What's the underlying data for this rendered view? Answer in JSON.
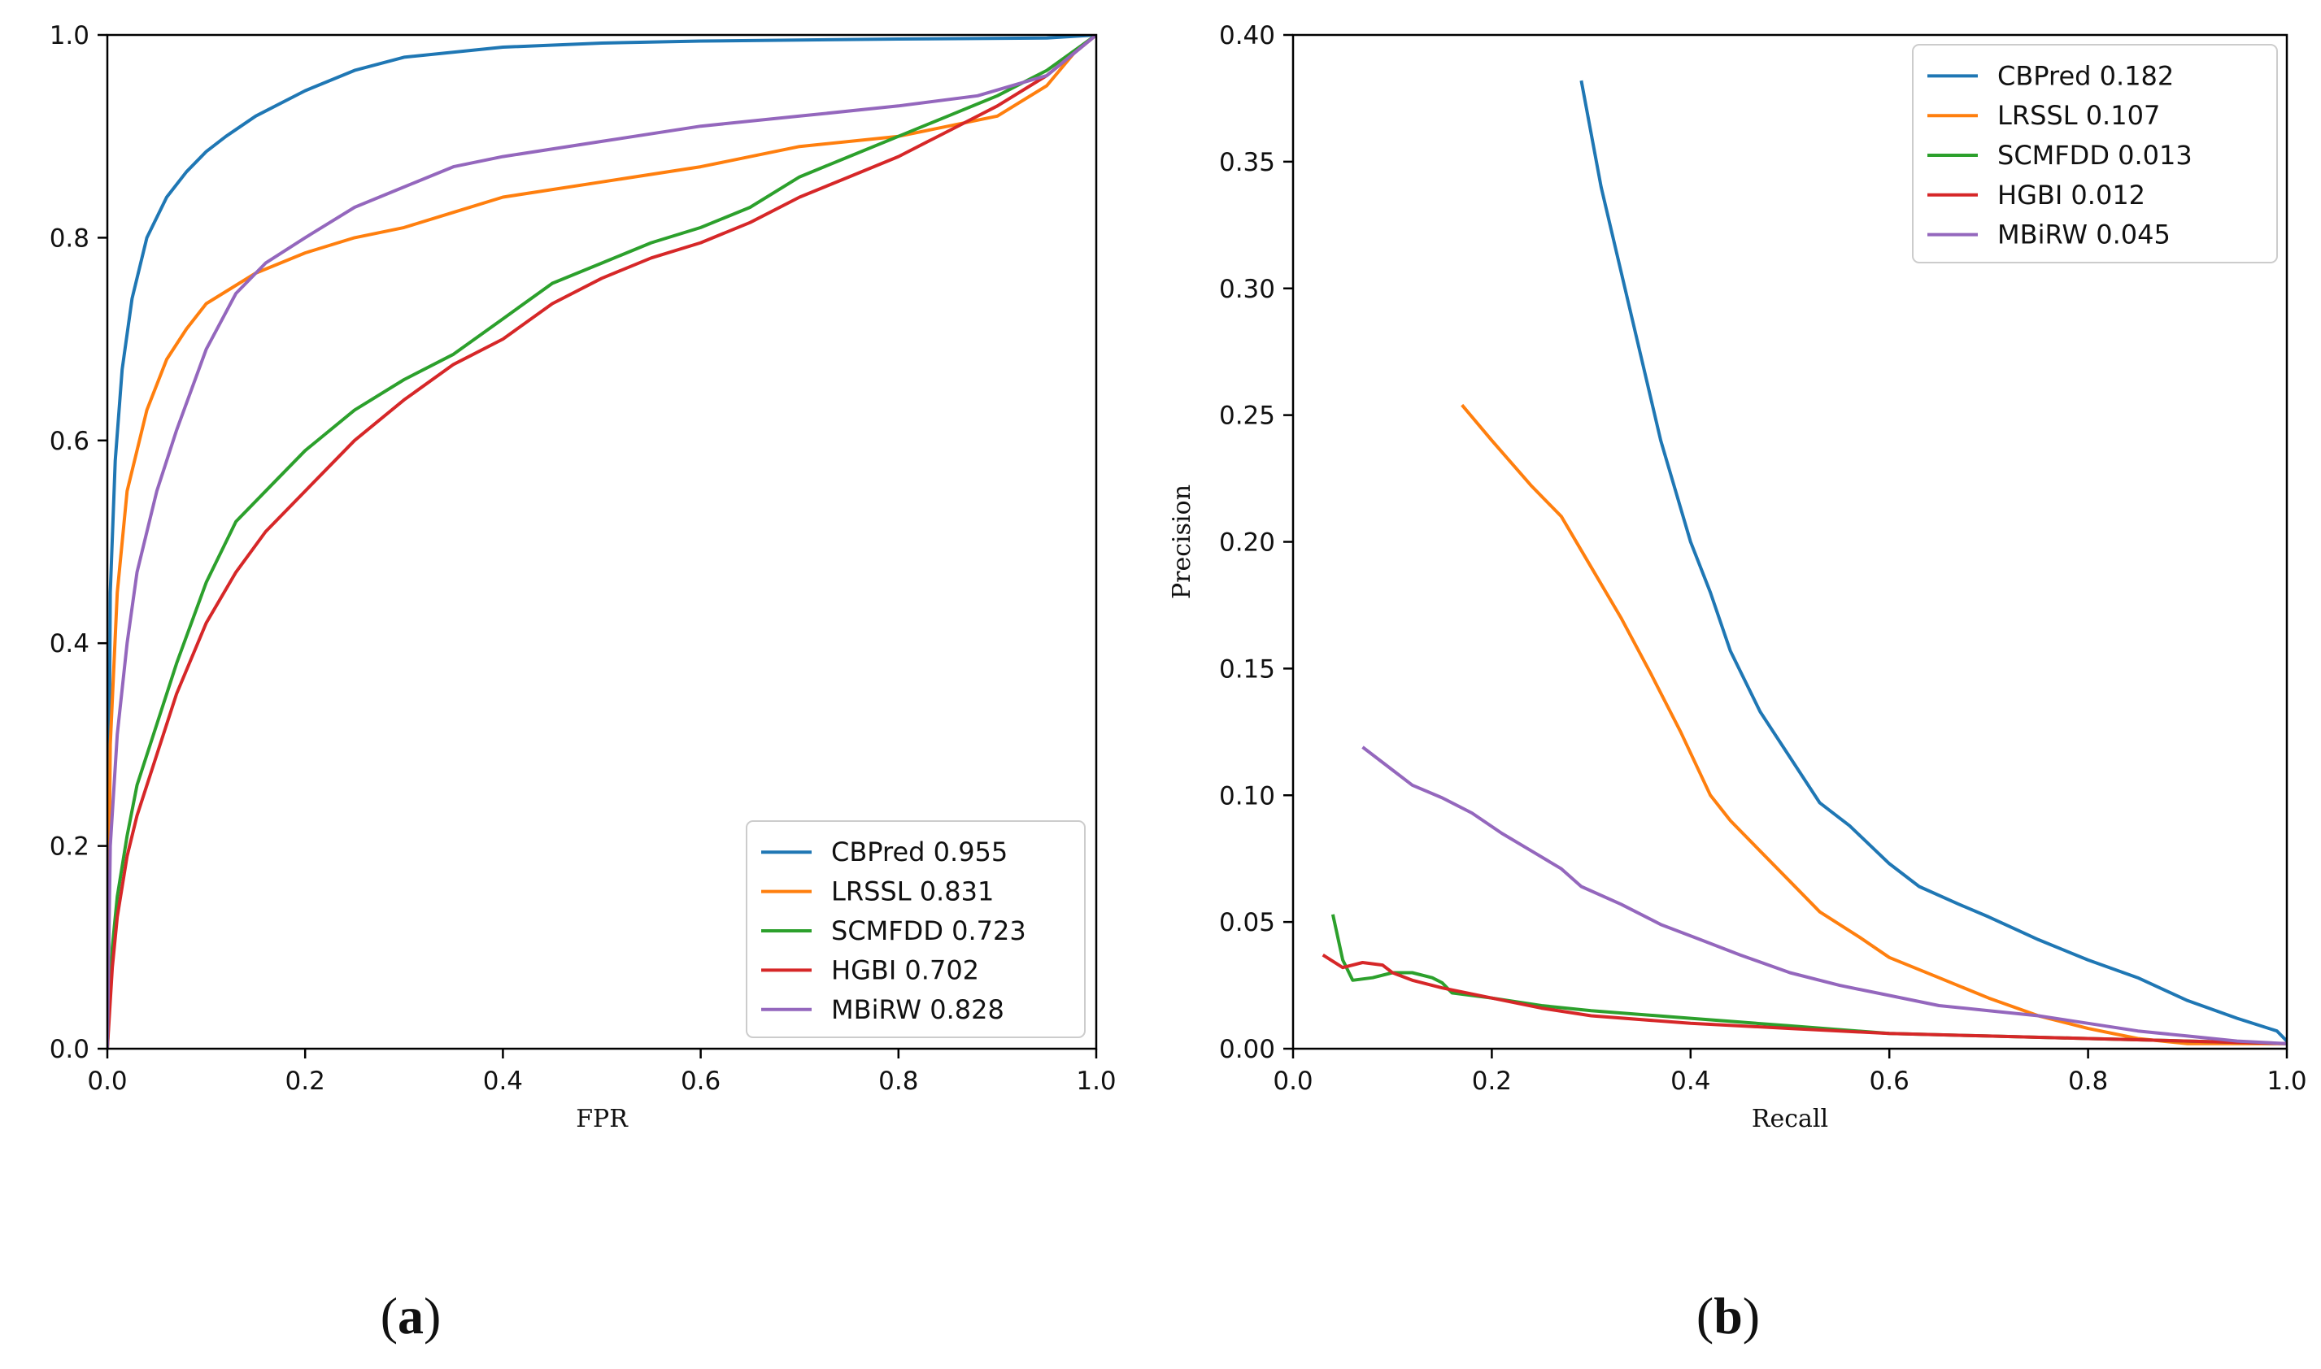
{
  "chart_data": [
    {
      "type": "line",
      "panel_label": [
        "(",
        "a",
        ")"
      ],
      "title": "",
      "xlabel": "FPR",
      "ylabel": "",
      "xlim": [
        0,
        1
      ],
      "ylim": [
        0,
        1
      ],
      "xticks": [
        "0.0",
        "0.2",
        "0.4",
        "0.6",
        "0.8",
        "1.0"
      ],
      "yticks": [
        "0.0",
        "0.2",
        "0.4",
        "0.6",
        "0.8",
        "1.0"
      ],
      "legend_position": "bottom-right",
      "series": [
        {
          "name": "CBPred",
          "legend": "CBPred 0.955",
          "color": "#1f77b4",
          "x": [
            0,
            0.003,
            0.008,
            0.015,
            0.025,
            0.04,
            0.06,
            0.08,
            0.1,
            0.12,
            0.15,
            0.2,
            0.25,
            0.3,
            0.4,
            0.5,
            0.6,
            0.8,
            0.95,
            1.0
          ],
          "y": [
            0,
            0.45,
            0.58,
            0.67,
            0.74,
            0.8,
            0.84,
            0.865,
            0.885,
            0.9,
            0.92,
            0.945,
            0.965,
            0.978,
            0.988,
            0.992,
            0.994,
            0.996,
            0.997,
            1.0
          ]
        },
        {
          "name": "LRSSL",
          "legend": "LRSSL 0.831",
          "color": "#ff7f0e",
          "x": [
            0,
            0.003,
            0.01,
            0.02,
            0.04,
            0.06,
            0.08,
            0.1,
            0.15,
            0.2,
            0.25,
            0.3,
            0.35,
            0.4,
            0.5,
            0.6,
            0.7,
            0.8,
            0.9,
            0.95,
            0.98,
            1.0
          ],
          "y": [
            0,
            0.3,
            0.45,
            0.55,
            0.63,
            0.68,
            0.71,
            0.735,
            0.765,
            0.785,
            0.8,
            0.81,
            0.825,
            0.84,
            0.855,
            0.87,
            0.89,
            0.9,
            0.92,
            0.95,
            0.985,
            1.0
          ]
        },
        {
          "name": "SCMFDD",
          "legend": "SCMFDD 0.723",
          "color": "#2ca02c",
          "x": [
            0,
            0.005,
            0.01,
            0.02,
            0.03,
            0.05,
            0.07,
            0.1,
            0.13,
            0.17,
            0.2,
            0.25,
            0.3,
            0.35,
            0.4,
            0.45,
            0.5,
            0.55,
            0.6,
            0.65,
            0.7,
            0.75,
            0.8,
            0.85,
            0.9,
            0.95,
            1.0
          ],
          "y": [
            0,
            0.1,
            0.15,
            0.21,
            0.26,
            0.32,
            0.38,
            0.46,
            0.52,
            0.56,
            0.59,
            0.63,
            0.66,
            0.685,
            0.72,
            0.755,
            0.775,
            0.795,
            0.81,
            0.83,
            0.86,
            0.88,
            0.9,
            0.92,
            0.94,
            0.965,
            1.0
          ]
        },
        {
          "name": "HGBI",
          "legend": "HGBI 0.702",
          "color": "#d62728",
          "x": [
            0,
            0.005,
            0.01,
            0.02,
            0.03,
            0.05,
            0.07,
            0.1,
            0.13,
            0.16,
            0.2,
            0.25,
            0.3,
            0.35,
            0.4,
            0.45,
            0.5,
            0.55,
            0.6,
            0.65,
            0.7,
            0.75,
            0.8,
            0.85,
            0.9,
            0.95,
            1.0
          ],
          "y": [
            0,
            0.08,
            0.13,
            0.19,
            0.23,
            0.29,
            0.35,
            0.42,
            0.47,
            0.51,
            0.55,
            0.6,
            0.64,
            0.675,
            0.7,
            0.735,
            0.76,
            0.78,
            0.795,
            0.815,
            0.84,
            0.86,
            0.88,
            0.905,
            0.93,
            0.96,
            1.0
          ]
        },
        {
          "name": "MBiRW",
          "legend": "MBiRW 0.828",
          "color": "#9467bd",
          "x": [
            0,
            0.003,
            0.01,
            0.02,
            0.03,
            0.05,
            0.07,
            0.1,
            0.13,
            0.16,
            0.2,
            0.25,
            0.3,
            0.35,
            0.4,
            0.5,
            0.6,
            0.7,
            0.8,
            0.88,
            0.95,
            1.0
          ],
          "y": [
            0,
            0.2,
            0.31,
            0.4,
            0.47,
            0.55,
            0.61,
            0.69,
            0.745,
            0.775,
            0.8,
            0.83,
            0.85,
            0.87,
            0.88,
            0.895,
            0.91,
            0.92,
            0.93,
            0.94,
            0.96,
            1.0
          ]
        }
      ]
    },
    {
      "type": "line",
      "panel_label": [
        "(",
        "b",
        ")"
      ],
      "title": "",
      "xlabel": "Recall",
      "ylabel": "Precision",
      "xlim": [
        0,
        1
      ],
      "ylim": [
        0,
        0.4
      ],
      "xticks": [
        "0.0",
        "0.2",
        "0.4",
        "0.6",
        "0.8",
        "1.0"
      ],
      "yticks": [
        "0.00",
        "0.05",
        "0.10",
        "0.15",
        "0.20",
        "0.25",
        "0.30",
        "0.35",
        "0.40"
      ],
      "legend_position": "top-right",
      "series": [
        {
          "name": "CBPred",
          "legend": "CBPred  0.182",
          "color": "#1f77b4",
          "x": [
            0.29,
            0.31,
            0.34,
            0.37,
            0.4,
            0.42,
            0.44,
            0.47,
            0.5,
            0.53,
            0.56,
            0.6,
            0.63,
            0.67,
            0.7,
            0.75,
            0.8,
            0.85,
            0.9,
            0.95,
            0.99,
            1.0
          ],
          "y": [
            0.382,
            0.34,
            0.29,
            0.24,
            0.2,
            0.18,
            0.157,
            0.133,
            0.115,
            0.097,
            0.088,
            0.073,
            0.064,
            0.057,
            0.052,
            0.043,
            0.035,
            0.028,
            0.019,
            0.012,
            0.007,
            0.003
          ]
        },
        {
          "name": "LRSSL",
          "legend": "LRSSL  0.107",
          "color": "#ff7f0e",
          "x": [
            0.17,
            0.2,
            0.24,
            0.27,
            0.3,
            0.33,
            0.36,
            0.39,
            0.42,
            0.44,
            0.47,
            0.5,
            0.53,
            0.57,
            0.6,
            0.65,
            0.7,
            0.75,
            0.8,
            0.85,
            0.9,
            1.0
          ],
          "y": [
            0.254,
            0.24,
            0.222,
            0.21,
            0.19,
            0.17,
            0.148,
            0.125,
            0.1,
            0.09,
            0.078,
            0.066,
            0.054,
            0.044,
            0.036,
            0.028,
            0.02,
            0.013,
            0.008,
            0.004,
            0.002,
            0.002
          ]
        },
        {
          "name": "SCMFDD",
          "legend": "SCMFDD  0.013",
          "color": "#2ca02c",
          "x": [
            0.04,
            0.05,
            0.06,
            0.08,
            0.1,
            0.12,
            0.14,
            0.15,
            0.16,
            0.2,
            0.25,
            0.3,
            0.4,
            0.5,
            0.6,
            0.7,
            0.8,
            0.9,
            1.0
          ],
          "y": [
            0.053,
            0.035,
            0.027,
            0.028,
            0.03,
            0.03,
            0.028,
            0.026,
            0.022,
            0.02,
            0.017,
            0.015,
            0.012,
            0.009,
            0.006,
            0.005,
            0.004,
            0.003,
            0.002
          ]
        },
        {
          "name": "HGBI",
          "legend": "HGBI  0.012",
          "color": "#d62728",
          "x": [
            0.03,
            0.05,
            0.07,
            0.09,
            0.1,
            0.12,
            0.15,
            0.2,
            0.25,
            0.3,
            0.4,
            0.5,
            0.6,
            0.7,
            0.8,
            0.9,
            1.0
          ],
          "y": [
            0.037,
            0.032,
            0.034,
            0.033,
            0.03,
            0.027,
            0.024,
            0.02,
            0.016,
            0.013,
            0.01,
            0.008,
            0.006,
            0.005,
            0.004,
            0.003,
            0.002
          ]
        },
        {
          "name": "MBiRW",
          "legend": "MBiRW  0.045",
          "color": "#9467bd",
          "x": [
            0.07,
            0.1,
            0.12,
            0.15,
            0.18,
            0.21,
            0.24,
            0.27,
            0.29,
            0.33,
            0.37,
            0.41,
            0.45,
            0.5,
            0.55,
            0.6,
            0.65,
            0.7,
            0.75,
            0.8,
            0.85,
            0.9,
            0.95,
            1.0
          ],
          "y": [
            0.119,
            0.11,
            0.104,
            0.099,
            0.093,
            0.085,
            0.078,
            0.071,
            0.064,
            0.057,
            0.049,
            0.043,
            0.037,
            0.03,
            0.025,
            0.021,
            0.017,
            0.015,
            0.013,
            0.01,
            0.007,
            0.005,
            0.003,
            0.002
          ]
        }
      ]
    }
  ]
}
